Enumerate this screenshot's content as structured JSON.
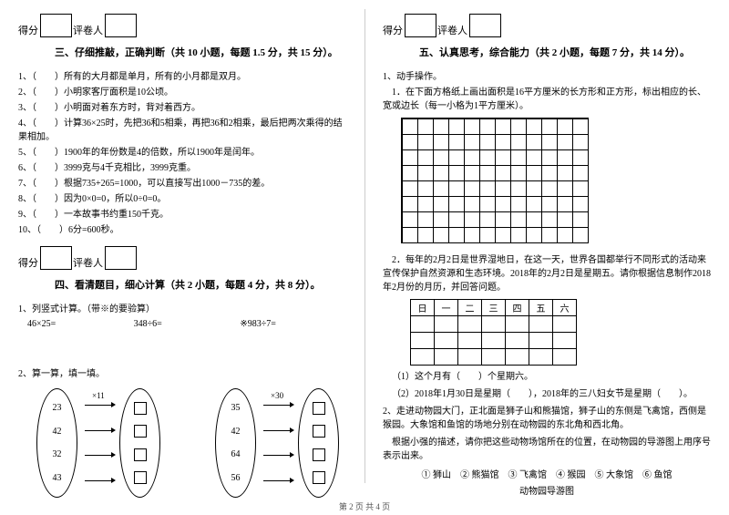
{
  "left": {
    "score_labels": {
      "score": "得分",
      "grader": "评卷人"
    },
    "section3_title": "三、仔细推敲，正确判断（共 10 小题，每题 1.5 分，共 15 分）。",
    "judg": [
      "1、（　　）所有的大月都是单月，所有的小月都是双月。",
      "2、（　　）小明家客厅面积是10公顷。",
      "3、（　　）小明面对着东方时，背对着西方。",
      "4、（　　）计算36×25时，先把36和5相乘，再把36和2相乘，最后把两次乘得的结果相加。",
      "5、（　　）1900年的年份数是4的倍数，所以1900年是闰年。",
      "6、（　　）3999克与4千克相比，3999克重。",
      "7、（　　）根据735+265=1000，可以直接写出1000－735的差。",
      "8、（　　）因为0×0=0，所以0÷0=0。",
      "9、（　　）一本故事书约重150千克。",
      "10、（　　）6分=600秒。"
    ],
    "section4_title": "四、看清题目，细心计算（共 2 小题，每题 4 分，共 8 分）。",
    "s4_q1": "1、列竖式计算。（带※的要验算）",
    "calcs": {
      "a": "46×25=",
      "b": "348÷6=",
      "c": "※983÷7="
    },
    "s4_q2": "2、算一算，填一填。",
    "oval1": {
      "mult": "×11",
      "vals": [
        "23",
        "42",
        "32",
        "43"
      ]
    },
    "oval2": {
      "mult": "×30",
      "vals": [
        "35",
        "42",
        "64",
        "56"
      ]
    }
  },
  "right": {
    "score_labels": {
      "score": "得分",
      "grader": "评卷人"
    },
    "section5_title": "五、认真思考，综合能力（共 2 小题，每题 7 分，共 14 分）。",
    "s5_q1": "1、动手操作。",
    "s5_q1a": "1．在下面方格纸上画出面积是16平方厘米的长方形和正方形，标出相应的长、宽或边长（每一小格为1平方厘米）。",
    "grid": {
      "rows": 8,
      "cols": 12
    },
    "s5_q2_para": "2．每年的2月2日是世界湿地日，在这一天，世界各国都举行不同形式的活动来宣传保护自然资源和生态环境。2018年的2月2日是星期五。请你根据信息制作2018年2月份的月历，并回答问题。",
    "cal_headers": [
      "日",
      "一",
      "二",
      "三",
      "四",
      "五",
      "六"
    ],
    "s5_q2_sub1": "（1）这个月有（　　）个星期六。",
    "s5_q2_sub2": "（2）2018年1月30日是星期（　　），2018年的三八妇女节是星期（　　）。",
    "s5_zoo_para": "2、走进动物园大门，正北面是狮子山和熊猫馆，狮子山的东侧是飞禽馆，西侧是猴园。大象馆和鱼馆的场地分别在动物园的东北角和西北角。",
    "s5_zoo_task": "根据小强的描述，请你把这些动物场馆所在的位置，在动物园的导游图上用序号表示出来。",
    "zoo_items": "① 狮山　② 熊猫馆　③ 飞禽馆　④ 猴园　⑤ 大象馆　⑥ 鱼馆",
    "zoo_title": "动物园导游图"
  },
  "footer": "第 2 页 共 4 页"
}
